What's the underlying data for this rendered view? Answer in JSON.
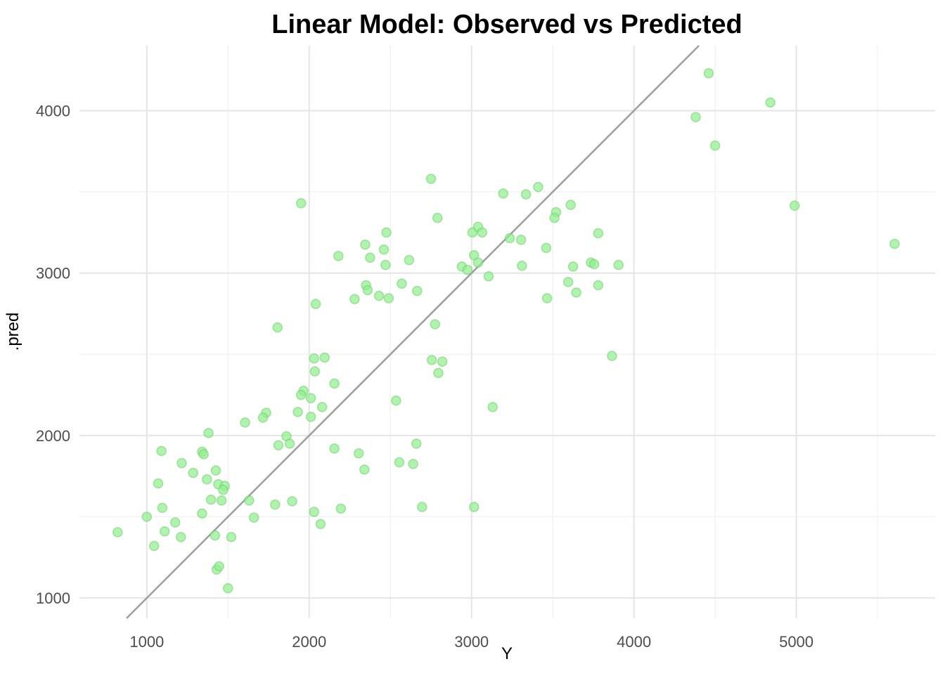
{
  "chart_data": {
    "type": "scatter",
    "title": "Linear Model: Observed vs Predicted",
    "xlabel": "Y",
    "ylabel": ".pred",
    "x_ticks": [
      1000,
      2000,
      3000,
      4000,
      5000
    ],
    "y_ticks": [
      1000,
      2000,
      3000,
      4000
    ],
    "x_minor_ticks": [
      1500,
      2500,
      3500,
      4500,
      5500
    ],
    "y_minor_ticks": [
      1500,
      2500,
      3500
    ],
    "xlim": [
      585,
      5855
    ],
    "ylim": [
      875,
      4400
    ],
    "grid": "major+minor",
    "legend_position": "none",
    "identity_line": {
      "slope": 1,
      "intercept": 0
    },
    "points": [
      [
        2750,
        3580
      ],
      [
        1950,
        3430
      ],
      [
        2790,
        3340
      ],
      [
        3005,
        3250
      ],
      [
        3040,
        3285
      ],
      [
        3065,
        3250
      ],
      [
        2475,
        3250
      ],
      [
        4460,
        4230
      ],
      [
        4380,
        3960
      ],
      [
        4500,
        3785
      ],
      [
        3410,
        3530
      ],
      [
        3195,
        3490
      ],
      [
        3335,
        3485
      ],
      [
        3610,
        3420
      ],
      [
        3520,
        3375
      ],
      [
        3510,
        3340
      ],
      [
        3780,
        3245
      ],
      [
        3235,
        3215
      ],
      [
        3305,
        3205
      ],
      [
        4840,
        4050
      ],
      [
        4990,
        3415
      ],
      [
        5605,
        3180
      ],
      [
        1805,
        2665
      ],
      [
        1735,
        2140
      ],
      [
        1715,
        2110
      ],
      [
        1605,
        2080
      ],
      [
        1380,
        2015
      ],
      [
        1930,
        2145
      ],
      [
        2345,
        3175
      ],
      [
        2460,
        3145
      ],
      [
        2180,
        3105
      ],
      [
        2375,
        3095
      ],
      [
        2615,
        3080
      ],
      [
        2470,
        3050
      ],
      [
        3015,
        3110
      ],
      [
        3040,
        3065
      ],
      [
        2940,
        3040
      ],
      [
        2975,
        3020
      ],
      [
        3105,
        2980
      ],
      [
        2570,
        2935
      ],
      [
        2665,
        2890
      ],
      [
        2350,
        2925
      ],
      [
        2360,
        2895
      ],
      [
        2430,
        2860
      ],
      [
        2490,
        2845
      ],
      [
        2280,
        2840
      ],
      [
        2040,
        2810
      ],
      [
        2775,
        2685
      ],
      [
        2030,
        2475
      ],
      [
        2095,
        2480
      ],
      [
        2035,
        2395
      ],
      [
        2755,
        2465
      ],
      [
        2820,
        2455
      ],
      [
        2795,
        2385
      ],
      [
        2155,
        2320
      ],
      [
        1965,
        2275
      ],
      [
        1950,
        2250
      ],
      [
        2010,
        2230
      ],
      [
        2535,
        2215
      ],
      [
        2080,
        2175
      ],
      [
        2010,
        2115
      ],
      [
        3130,
        2175
      ],
      [
        3460,
        3155
      ],
      [
        3310,
        3045
      ],
      [
        3625,
        3040
      ],
      [
        3735,
        3065
      ],
      [
        3755,
        3055
      ],
      [
        3905,
        3050
      ],
      [
        3595,
        2945
      ],
      [
        3780,
        2925
      ],
      [
        3645,
        2880
      ],
      [
        3465,
        2845
      ],
      [
        3865,
        2490
      ],
      [
        1860,
        1995
      ],
      [
        1880,
        1950
      ],
      [
        1810,
        1940
      ],
      [
        1090,
        1905
      ],
      [
        1340,
        1900
      ],
      [
        1350,
        1885
      ],
      [
        1215,
        1830
      ],
      [
        1285,
        1770
      ],
      [
        1425,
        1785
      ],
      [
        1370,
        1730
      ],
      [
        1070,
        1705
      ],
      [
        1440,
        1700
      ],
      [
        1480,
        1690
      ],
      [
        1470,
        1665
      ],
      [
        1395,
        1605
      ],
      [
        1460,
        1600
      ],
      [
        1630,
        1600
      ],
      [
        1790,
        1575
      ],
      [
        1895,
        1595
      ],
      [
        1095,
        1555
      ],
      [
        1340,
        1520
      ],
      [
        1000,
        1500
      ],
      [
        1175,
        1465
      ],
      [
        1660,
        1495
      ],
      [
        820,
        1405
      ],
      [
        1110,
        1410
      ],
      [
        1210,
        1375
      ],
      [
        1420,
        1385
      ],
      [
        1520,
        1375
      ],
      [
        1045,
        1320
      ],
      [
        1430,
        1175
      ],
      [
        1445,
        1195
      ],
      [
        1500,
        1060
      ],
      [
        2155,
        1920
      ],
      [
        2305,
        1890
      ],
      [
        2340,
        1790
      ],
      [
        2660,
        1950
      ],
      [
        2555,
        1835
      ],
      [
        2640,
        1825
      ],
      [
        2030,
        1530
      ],
      [
        2195,
        1550
      ],
      [
        2070,
        1455
      ],
      [
        2695,
        1560
      ],
      [
        3015,
        1560
      ]
    ]
  },
  "style": {
    "background": "#FFFFFF",
    "point_fill": "#90EE90",
    "point_stroke": "#6FCF69",
    "point_opacity": 0.72,
    "identity_line_color": "#9E9E9E",
    "grid_major_color": "#E5E5E5",
    "grid_minor_color": "#F2F2F2",
    "title_color": "#000000",
    "axis_label_color": "#000000",
    "tick_label_color": "#4D4D4D"
  }
}
